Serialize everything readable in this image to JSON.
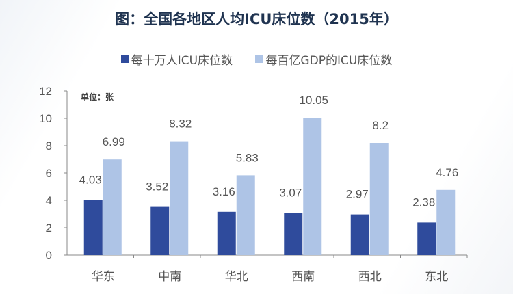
{
  "chart_data": {
    "type": "bar",
    "title": "图：全国各地区人均ICU床位数（2015年）",
    "unit_label": "单位：张",
    "categories": [
      "华东",
      "中南",
      "华北",
      "西南",
      "西北",
      "东北"
    ],
    "series": [
      {
        "name": "每十万人ICU床位数",
        "color": "#2f4b9c",
        "values": [
          4.03,
          3.52,
          3.16,
          3.07,
          2.97,
          2.38
        ],
        "labels": [
          "4.03",
          "3.52",
          "3.16",
          "3.07",
          "2.97",
          "2.38"
        ]
      },
      {
        "name": "每百亿GDP的ICU床位数",
        "color": "#aec4e6",
        "values": [
          6.99,
          8.32,
          5.83,
          10.05,
          8.2,
          4.76
        ],
        "labels": [
          "6.99",
          "8.32",
          "5.83",
          "10.05",
          "8.2",
          "4.76"
        ]
      }
    ],
    "yticks": [
      0,
      2,
      4,
      6,
      8,
      10,
      12
    ],
    "ylim": [
      0,
      12
    ],
    "legend": "top",
    "grid": false
  }
}
